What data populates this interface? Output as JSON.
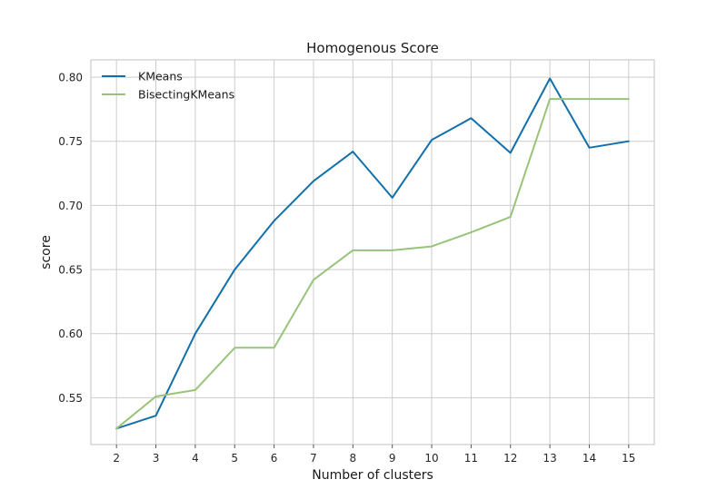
{
  "chart_data": {
    "type": "line",
    "title": "Homogenous Score",
    "xlabel": "Number of clusters",
    "ylabel": "score",
    "x": [
      2,
      3,
      4,
      5,
      6,
      7,
      8,
      9,
      10,
      11,
      12,
      13,
      14,
      15
    ],
    "xlim": [
      1.35,
      15.65
    ],
    "ylim": [
      0.5135,
      0.8135
    ],
    "yticks": [
      0.55,
      0.6,
      0.65,
      0.7,
      0.75,
      0.8
    ],
    "grid": true,
    "legend_position": "top-left",
    "series": [
      {
        "name": "KMeans",
        "color": "#1170aa",
        "values": [
          0.526,
          0.536,
          0.6,
          0.65,
          0.688,
          0.719,
          0.742,
          0.706,
          0.751,
          0.768,
          0.741,
          0.799,
          0.745,
          0.75
        ]
      },
      {
        "name": "BisectingKMeans",
        "color": "#98c37a",
        "values": [
          0.526,
          0.551,
          0.556,
          0.589,
          0.589,
          0.642,
          0.665,
          0.665,
          0.668,
          0.679,
          0.691,
          0.783,
          0.783,
          0.783
        ]
      }
    ]
  }
}
